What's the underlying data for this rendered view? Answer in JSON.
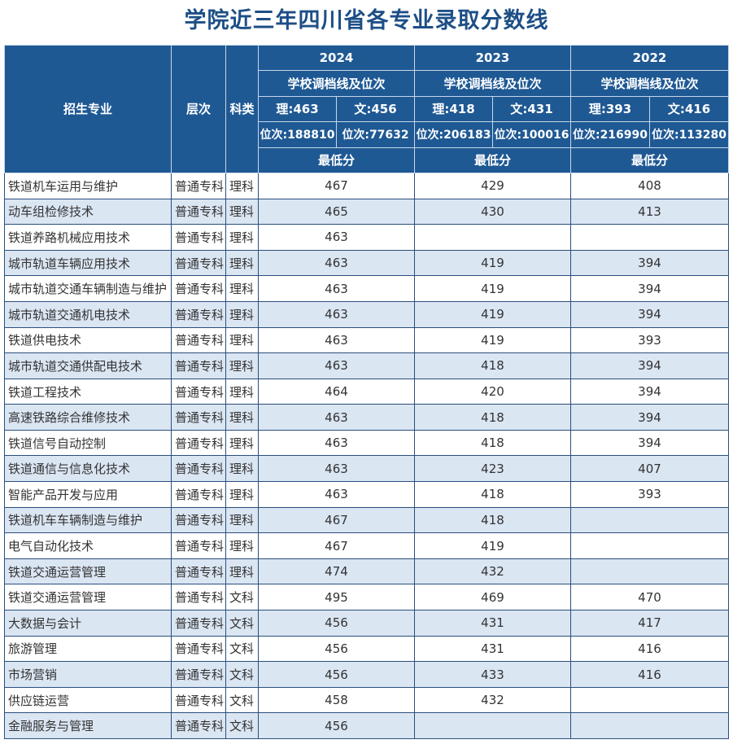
{
  "title": "学院近三年四川省各专业录取分数线",
  "header": {
    "major": "招生专业",
    "level": "层次",
    "category": "科类",
    "years": [
      {
        "year": "2024",
        "line_label": "学校调档线及位次",
        "li": "理:463",
        "wen": "文:456",
        "li_rank": "位次:188810",
        "wen_rank": "位次:77632",
        "min_label": "最低分"
      },
      {
        "year": "2023",
        "line_label": "学校调档线及位次",
        "li": "理:418",
        "wen": "文:431",
        "li_rank": "位次:206183",
        "wen_rank": "位次:100016",
        "min_label": "最低分"
      },
      {
        "year": "2022",
        "line_label": "学校调档线及位次",
        "li": "理:393",
        "wen": "文:416",
        "li_rank": "位次:216990",
        "wen_rank": "位次:113280",
        "min_label": "最低分"
      }
    ]
  },
  "table": {
    "rows": [
      [
        "铁道机车运用与维护",
        "普通专科",
        "理科",
        467,
        429,
        408
      ],
      [
        "动车组检修技术",
        "普通专科",
        "理科",
        465,
        430,
        413
      ],
      [
        "铁道养路机械应用技术",
        "普通专科",
        "理科",
        463,
        null,
        null
      ],
      [
        "城市轨道车辆应用技术",
        "普通专科",
        "理科",
        463,
        419,
        394
      ],
      [
        "城市轨道交通车辆制造与维护",
        "普通专科",
        "理科",
        463,
        419,
        394
      ],
      [
        "城市轨道交通机电技术",
        "普通专科",
        "理科",
        463,
        419,
        394
      ],
      [
        "铁道供电技术",
        "普通专科",
        "理科",
        463,
        419,
        393
      ],
      [
        "城市轨道交通供配电技术",
        "普通专科",
        "理科",
        463,
        418,
        394
      ],
      [
        "铁道工程技术",
        "普通专科",
        "理科",
        464,
        420,
        394
      ],
      [
        "高速铁路综合维修技术",
        "普通专科",
        "理科",
        463,
        418,
        394
      ],
      [
        "铁道信号自动控制",
        "普通专科",
        "理科",
        463,
        418,
        394
      ],
      [
        "铁道通信与信息化技术",
        "普通专科",
        "理科",
        463,
        423,
        407
      ],
      [
        "智能产品开发与应用",
        "普通专科",
        "理科",
        463,
        418,
        393
      ],
      [
        "铁道机车车辆制造与维护",
        "普通专科",
        "理科",
        467,
        418,
        null
      ],
      [
        "电气自动化技术",
        "普通专科",
        "理科",
        467,
        419,
        null
      ],
      [
        "铁道交通运营管理",
        "普通专科",
        "理科",
        474,
        432,
        null
      ],
      [
        "铁道交通运营管理",
        "普通专科",
        "文科",
        495,
        469,
        470
      ],
      [
        "大数据与会计",
        "普通专科",
        "文科",
        456,
        431,
        417
      ],
      [
        "旅游管理",
        "普通专科",
        "文科",
        456,
        431,
        416
      ],
      [
        "市场营销",
        "普通专科",
        "文科",
        456,
        433,
        416
      ],
      [
        "供应链运营",
        "普通专科",
        "文科",
        458,
        432,
        null
      ],
      [
        "金融服务与管理",
        "普通专科",
        "文科",
        456,
        null,
        null
      ]
    ]
  }
}
